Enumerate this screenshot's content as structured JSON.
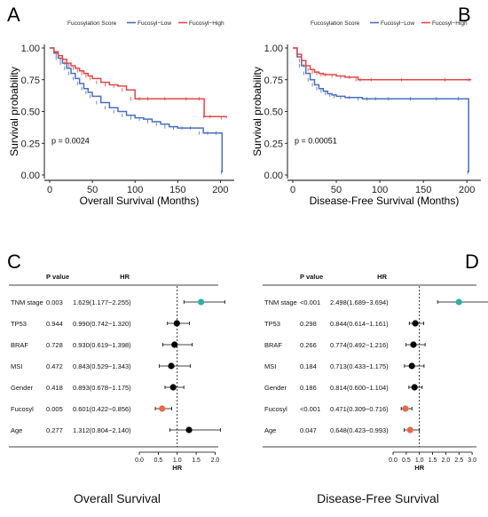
{
  "chart_data": [
    {
      "panel": "A",
      "type": "line",
      "legend_title": "Fucosylation Score",
      "legend_position": "top",
      "xlabel": "Overall Survival (Months)",
      "ylabel": "Survival probability",
      "xlim": [
        0,
        210
      ],
      "ylim": [
        0,
        1
      ],
      "x_ticks": [
        "0",
        "50",
        "100",
        "150",
        "200"
      ],
      "y_ticks": [
        "0.00",
        "0.25",
        "0.50",
        "0.75",
        "1.00"
      ],
      "annotation": "p = 0.0024",
      "series": [
        {
          "name": "Fucosyl−Low",
          "color": "#4a6fbf",
          "x": [
            0,
            5,
            10,
            15,
            20,
            25,
            30,
            35,
            40,
            45,
            50,
            60,
            70,
            80,
            90,
            100,
            110,
            120,
            130,
            140,
            150,
            160,
            170,
            180,
            190,
            200,
            202
          ],
          "y": [
            1.0,
            0.96,
            0.92,
            0.88,
            0.84,
            0.8,
            0.76,
            0.72,
            0.68,
            0.65,
            0.62,
            0.57,
            0.53,
            0.5,
            0.47,
            0.45,
            0.44,
            0.42,
            0.4,
            0.38,
            0.37,
            0.37,
            0.37,
            0.33,
            0.33,
            0.33,
            0.02
          ]
        },
        {
          "name": "Fucosyl−High",
          "color": "#e04848",
          "x": [
            0,
            5,
            10,
            15,
            20,
            25,
            30,
            35,
            40,
            45,
            50,
            60,
            70,
            80,
            90,
            100,
            110,
            120,
            150,
            170,
            180,
            181,
            195,
            207
          ],
          "y": [
            1.0,
            0.97,
            0.94,
            0.91,
            0.88,
            0.86,
            0.84,
            0.82,
            0.8,
            0.78,
            0.76,
            0.73,
            0.71,
            0.7,
            0.67,
            0.6,
            0.6,
            0.6,
            0.6,
            0.6,
            0.6,
            0.46,
            0.46,
            0.45
          ]
        }
      ]
    },
    {
      "panel": "B",
      "type": "line",
      "legend_title": "Fucosylation Score",
      "legend_position": "top",
      "xlabel": "Disease-Free Survival (Months)",
      "ylabel": "Survival probability",
      "xlim": [
        0,
        210
      ],
      "ylim": [
        0,
        1
      ],
      "x_ticks": [
        "0",
        "50",
        "100",
        "150",
        "200"
      ],
      "y_ticks": [
        "0.00",
        "0.25",
        "0.50",
        "0.75",
        "1.00"
      ],
      "annotation": "p = 0.00051",
      "series": [
        {
          "name": "Fucosyl−Low",
          "color": "#4a6fbf",
          "x": [
            0,
            5,
            10,
            15,
            20,
            25,
            30,
            35,
            40,
            45,
            50,
            60,
            70,
            80,
            90,
            100,
            120,
            150,
            180,
            200,
            202
          ],
          "y": [
            1.0,
            0.93,
            0.86,
            0.8,
            0.75,
            0.71,
            0.68,
            0.66,
            0.64,
            0.63,
            0.62,
            0.61,
            0.61,
            0.6,
            0.6,
            0.6,
            0.6,
            0.6,
            0.6,
            0.6,
            0.02
          ]
        },
        {
          "name": "Fucosyl−High",
          "color": "#e04848",
          "x": [
            0,
            5,
            10,
            15,
            20,
            25,
            30,
            35,
            40,
            50,
            60,
            70,
            75,
            80,
            100,
            150,
            200,
            205
          ],
          "y": [
            1.0,
            0.95,
            0.9,
            0.86,
            0.83,
            0.81,
            0.8,
            0.79,
            0.79,
            0.78,
            0.77,
            0.77,
            0.75,
            0.75,
            0.75,
            0.75,
            0.75,
            0.75
          ]
        }
      ]
    },
    {
      "panel": "C",
      "type": "scatter",
      "subtitle": "Overall Survival",
      "xlabel": "HR",
      "xlim": [
        0,
        2.2
      ],
      "x_ticks": [
        0,
        0.5,
        1.0,
        1.5,
        2.0
      ],
      "x_tick_labels": [
        "0.0",
        "0.5",
        "1.0",
        "1.5",
        "2.0"
      ],
      "reference_line": 1.0,
      "column_headers": {
        "pvalue": "P value",
        "hr": "HR"
      },
      "rows": [
        {
          "label": "TNM stage",
          "pvalue": "0.003",
          "hr_text": "1.629(1.177−2.255)",
          "hr": 1.629,
          "lo": 1.177,
          "hi": 2.255,
          "color": "#2bb39a"
        },
        {
          "label": "TP53",
          "pvalue": "0.944",
          "hr_text": "0.990(0.742−1.320)",
          "hr": 0.99,
          "lo": 0.742,
          "hi": 1.32,
          "color": "#000000"
        },
        {
          "label": "BRAF",
          "pvalue": "0.728",
          "hr_text": "0.930(0.619−1.398)",
          "hr": 0.93,
          "lo": 0.619,
          "hi": 1.398,
          "color": "#000000"
        },
        {
          "label": "MSI",
          "pvalue": "0.472",
          "hr_text": "0.843(0.529−1.343)",
          "hr": 0.843,
          "lo": 0.529,
          "hi": 1.343,
          "color": "#000000"
        },
        {
          "label": "Gender",
          "pvalue": "0.418",
          "hr_text": "0.893(0.678−1.175)",
          "hr": 0.893,
          "lo": 0.678,
          "hi": 1.175,
          "color": "#000000"
        },
        {
          "label": "Fucosyl",
          "pvalue": "0.005",
          "hr_text": "0.601(0.422−0.856)",
          "hr": 0.601,
          "lo": 0.422,
          "hi": 0.856,
          "color": "#e8694a"
        },
        {
          "label": "Age",
          "pvalue": "0.277",
          "hr_text": "1.312(0.804−2.140)",
          "hr": 1.312,
          "lo": 0.804,
          "hi": 2.14,
          "color": "#000000"
        }
      ]
    },
    {
      "panel": "D",
      "type": "scatter",
      "subtitle": "Disease-Free Survival",
      "xlabel": "HR",
      "xlim": [
        0,
        3.4
      ],
      "x_ticks": [
        0,
        0.5,
        1.0,
        1.5,
        2.0,
        2.5,
        3.0
      ],
      "x_tick_labels": [
        "0.0",
        "0.5",
        "1.0",
        "1.5",
        "2.0",
        "2.5",
        "3.0"
      ],
      "reference_line": 1.0,
      "column_headers": {
        "pvalue": "P value",
        "hr": "HR"
      },
      "rows": [
        {
          "label": "TNM stage",
          "pvalue": "<0.001",
          "hr_text": "2.498(1.689−3.694)",
          "hr": 2.498,
          "lo": 1.689,
          "hi": 3.694,
          "color": "#2bb39a"
        },
        {
          "label": "TP53",
          "pvalue": "0.298",
          "hr_text": "0.844(0.614−1.161)",
          "hr": 0.844,
          "lo": 0.614,
          "hi": 1.161,
          "color": "#000000"
        },
        {
          "label": "BRAF",
          "pvalue": "0.266",
          "hr_text": "0.774(0.492−1.216)",
          "hr": 0.774,
          "lo": 0.492,
          "hi": 1.216,
          "color": "#000000"
        },
        {
          "label": "MSI",
          "pvalue": "0.184",
          "hr_text": "0.713(0.433−1.175)",
          "hr": 0.713,
          "lo": 0.433,
          "hi": 1.175,
          "color": "#000000"
        },
        {
          "label": "Gender",
          "pvalue": "0.186",
          "hr_text": "0.814(0.600−1.104)",
          "hr": 0.814,
          "lo": 0.6,
          "hi": 1.104,
          "color": "#000000"
        },
        {
          "label": "Fucosyl",
          "pvalue": "<0.001",
          "hr_text": "0.471(0.309−0.716)",
          "hr": 0.471,
          "lo": 0.309,
          "hi": 0.716,
          "color": "#e8694a"
        },
        {
          "label": "Age",
          "pvalue": "0.047",
          "hr_text": "0.648(0.423−0.993)",
          "hr": 0.648,
          "lo": 0.423,
          "hi": 0.993,
          "color": "#e8694a"
        }
      ]
    }
  ]
}
